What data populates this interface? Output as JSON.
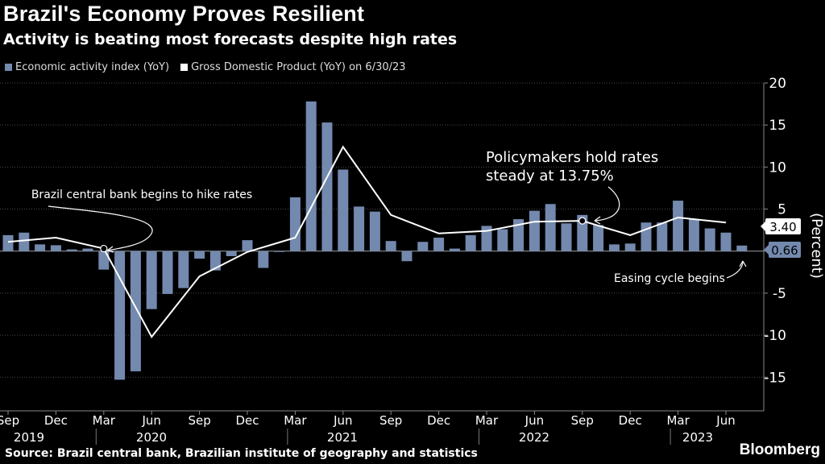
{
  "title": "Brazil's Economy Proves Resilient",
  "subtitle": "Activity is beating most forecasts despite high rates",
  "source": "Source: Brazil central bank, Brazilian institute of geography and statistics",
  "brand": "Bloomberg",
  "colors": {
    "bar": "#7389ae",
    "line": "#ffffff",
    "background": "#000000",
    "grid": "#555555"
  },
  "chart_data": {
    "type": "bar",
    "ylabel": "(Percent)",
    "ylim": [
      -19,
      20
    ],
    "yticks": [
      20,
      15,
      10,
      5,
      0,
      -5,
      -10,
      -15
    ],
    "legend": [
      "Economic activity index (YoY)",
      "Gross Domestic Product (YoY) on 6/30/23"
    ],
    "series": [
      {
        "name": "Economic activity index (YoY)",
        "type": "bar",
        "months": [
          "2019-09",
          "2019-10",
          "2019-11",
          "2019-12",
          "2020-01",
          "2020-02",
          "2020-03",
          "2020-04",
          "2020-05",
          "2020-06",
          "2020-07",
          "2020-08",
          "2020-09",
          "2020-10",
          "2020-11",
          "2020-12",
          "2021-01",
          "2021-02",
          "2021-03",
          "2021-04",
          "2021-05",
          "2021-06",
          "2021-07",
          "2021-08",
          "2021-09",
          "2021-10",
          "2021-11",
          "2021-12",
          "2022-01",
          "2022-02",
          "2022-03",
          "2022-04",
          "2022-05",
          "2022-06",
          "2022-07",
          "2022-08",
          "2022-09",
          "2022-10",
          "2022-11",
          "2022-12",
          "2023-01",
          "2023-02",
          "2023-03",
          "2023-04",
          "2023-05",
          "2023-06",
          "2023-07"
        ],
        "values": [
          1.9,
          2.2,
          0.8,
          0.7,
          0.2,
          0.3,
          -2.2,
          -15.3,
          -14.3,
          -6.9,
          -5.1,
          -4.4,
          -0.9,
          -2.3,
          -0.6,
          1.3,
          -2.0,
          -0.1,
          6.4,
          17.8,
          15.3,
          9.7,
          5.3,
          4.7,
          1.2,
          -1.2,
          1.1,
          1.6,
          0.3,
          1.9,
          3.0,
          2.6,
          3.8,
          4.8,
          5.6,
          3.3,
          4.3,
          3.1,
          0.8,
          0.9,
          3.4,
          3.4,
          6.0,
          3.8,
          2.7,
          2.2,
          0.66
        ]
      },
      {
        "name": "Gross Domestic Product (YoY) on 6/30/23",
        "type": "line",
        "months": [
          "2019-09",
          "2019-12",
          "2020-03",
          "2020-06",
          "2020-09",
          "2020-12",
          "2021-03",
          "2021-06",
          "2021-09",
          "2021-12",
          "2022-03",
          "2022-06",
          "2022-09",
          "2022-12",
          "2023-03",
          "2023-06"
        ],
        "values": [
          1.1,
          1.6,
          0.3,
          -10.2,
          -3.0,
          -0.1,
          1.6,
          12.4,
          4.3,
          2.1,
          2.4,
          3.5,
          3.6,
          1.9,
          4.0,
          3.4
        ]
      }
    ],
    "x_ticks": [
      "Sep",
      "Dec",
      "Mar",
      "Jun",
      "Sep",
      "Dec",
      "Mar",
      "Jun",
      "Sep",
      "Dec",
      "Mar",
      "Jun",
      "Sep",
      "Dec",
      "Mar",
      "Jun"
    ],
    "x_years": [
      "2019",
      "2020",
      "2021",
      "2022",
      "2023"
    ],
    "value_labels": [
      "3.40",
      "0.66"
    ],
    "annotations": [
      "Brazil central bank begins to hike rates",
      "Policymakers hold rates",
      "steady at 13.75%",
      "Easing cycle begins"
    ]
  }
}
